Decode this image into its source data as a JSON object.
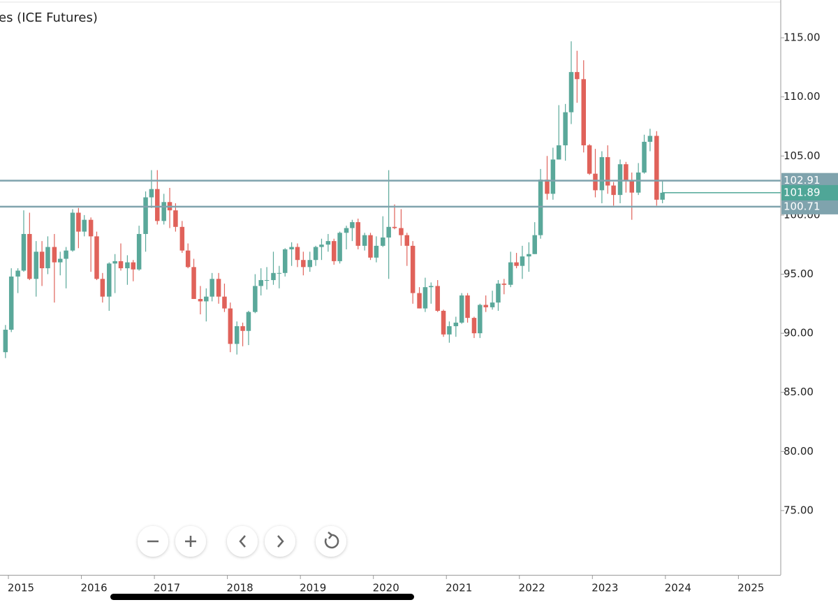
{
  "chart_data": {
    "type": "candlestick",
    "title": "es (ICE Futures)",
    "up_color": "#5aa89a",
    "down_color": "#e0625a",
    "level_color": "#7fa3ad",
    "last_color": "#4fa697",
    "xlim": [
      2014.885,
      2025.58
    ],
    "xticks": [
      2015,
      2016,
      2017,
      2018,
      2019,
      2020,
      2021,
      2022,
      2023,
      2024,
      2025
    ],
    "ylim": [
      69.56,
      117.9
    ],
    "yticks": [
      {
        "value": 75,
        "label": "75.00"
      },
      {
        "value": 80,
        "label": "80.00"
      },
      {
        "value": 85,
        "label": "85.00"
      },
      {
        "value": 90,
        "label": "90.00"
      },
      {
        "value": 95,
        "label": "95.00"
      },
      {
        "value": 100,
        "label": "100.00"
      },
      {
        "value": 105,
        "label": "105.00"
      },
      {
        "value": 110,
        "label": "110.00"
      },
      {
        "value": 115,
        "label": "115.00"
      }
    ],
    "levels": [
      102.91,
      100.71
    ],
    "last_price": 101.89,
    "x": [
      2014.96,
      2015.04,
      2015.13,
      2015.21,
      2015.29,
      2015.38,
      2015.46,
      2015.54,
      2015.63,
      2015.71,
      2015.79,
      2015.88,
      2015.96,
      2016.04,
      2016.13,
      2016.21,
      2016.29,
      2016.38,
      2016.46,
      2016.54,
      2016.63,
      2016.71,
      2016.79,
      2016.88,
      2016.96,
      2017.04,
      2017.13,
      2017.21,
      2017.29,
      2017.38,
      2017.46,
      2017.54,
      2017.63,
      2017.71,
      2017.79,
      2017.88,
      2017.96,
      2018.04,
      2018.13,
      2018.21,
      2018.29,
      2018.38,
      2018.46,
      2018.54,
      2018.63,
      2018.71,
      2018.79,
      2018.88,
      2018.96,
      2019.04,
      2019.13,
      2019.21,
      2019.29,
      2019.38,
      2019.46,
      2019.54,
      2019.63,
      2019.71,
      2019.79,
      2019.88,
      2019.96,
      2020.04,
      2020.13,
      2020.21,
      2020.29,
      2020.38,
      2020.46,
      2020.54,
      2020.63,
      2020.71,
      2020.79,
      2020.88,
      2020.96,
      2021.04,
      2021.13,
      2021.21,
      2021.29,
      2021.38,
      2021.46,
      2021.54,
      2021.63,
      2021.71,
      2021.79,
      2021.88,
      2021.96,
      2022.04,
      2022.13,
      2022.21,
      2022.29,
      2022.38,
      2022.46,
      2022.54,
      2022.63,
      2022.71,
      2022.79,
      2022.88,
      2022.96,
      2023.04,
      2023.13,
      2023.21,
      2023.29,
      2023.38,
      2023.46,
      2023.54,
      2023.63,
      2023.71,
      2023.79,
      2023.88,
      2023.96
    ],
    "open": [
      88.4,
      90.3,
      94.8,
      95.3,
      98.4,
      94.6,
      96.9,
      95.5,
      97.3,
      96.0,
      96.3,
      97.0,
      100.2,
      98.6,
      99.6,
      98.2,
      94.6,
      93.1,
      95.9,
      96.1,
      95.5,
      96.0,
      95.4,
      98.4,
      101.5,
      102.2,
      99.5,
      101.1,
      100.4,
      99.0,
      97.0,
      95.6,
      92.9,
      92.7,
      93.1,
      94.6,
      93.1,
      92.1,
      89.1,
      90.6,
      90.2,
      91.8,
      94.0,
      94.5,
      94.5,
      95.1,
      95.1,
      97.1,
      97.3,
      96.2,
      95.6,
      96.2,
      97.3,
      97.5,
      97.8,
      96.1,
      98.5,
      98.9,
      99.4,
      97.4,
      98.3,
      96.4,
      97.4,
      98.1,
      99.0,
      98.9,
      98.3,
      97.4,
      93.4,
      92.1,
      93.9,
      94.0,
      91.9,
      89.9,
      90.6,
      90.9,
      93.2,
      91.3,
      90.0,
      92.4,
      92.2,
      92.6,
      94.2,
      94.1,
      96.0,
      95.7,
      96.5,
      96.7,
      98.3,
      103.0,
      101.8,
      104.7,
      105.9,
      108.7,
      112.1,
      111.5,
      105.9,
      103.5,
      102.1,
      104.9,
      102.5,
      101.7,
      104.3,
      102.9,
      101.9,
      103.6,
      106.2,
      106.7,
      101.3
    ],
    "high": [
      90.7,
      95.5,
      95.5,
      100.4,
      100.2,
      97.8,
      97.8,
      98.2,
      98.4,
      96.9,
      97.3,
      100.5,
      100.6,
      100.0,
      99.8,
      98.6,
      95.1,
      96.0,
      96.7,
      97.6,
      96.6,
      96.2,
      99.1,
      102.0,
      103.8,
      103.8,
      101.8,
      102.3,
      101.0,
      99.5,
      97.6,
      96.3,
      94.0,
      93.8,
      95.1,
      95.1,
      94.2,
      92.6,
      91.0,
      90.9,
      91.9,
      95.0,
      95.5,
      95.6,
      96.9,
      95.7,
      97.2,
      97.7,
      97.6,
      96.9,
      96.9,
      97.4,
      98.0,
      98.4,
      98.0,
      98.6,
      99.1,
      99.6,
      99.7,
      98.5,
      98.5,
      98.2,
      99.9,
      103.8,
      100.9,
      100.5,
      98.5,
      97.8,
      93.9,
      94.7,
      94.3,
      94.5,
      92.0,
      91.0,
      91.4,
      93.4,
      93.4,
      91.4,
      92.5,
      93.2,
      93.6,
      94.5,
      94.6,
      96.9,
      96.8,
      97.4,
      97.7,
      99.4,
      103.9,
      105.0,
      105.7,
      109.3,
      109.4,
      114.7,
      113.9,
      113.1,
      106.0,
      105.6,
      105.4,
      105.9,
      102.8,
      104.7,
      104.5,
      103.6,
      104.4,
      106.8,
      107.3,
      107.1,
      102.9
    ],
    "low": [
      87.9,
      90.1,
      93.4,
      95.2,
      94.5,
      93.1,
      94.0,
      95.0,
      92.6,
      94.9,
      93.8,
      96.9,
      97.2,
      98.2,
      95.2,
      94.5,
      92.6,
      91.9,
      93.4,
      95.3,
      94.1,
      94.4,
      95.3,
      96.9,
      100.6,
      99.2,
      99.2,
      98.9,
      98.6,
      96.8,
      95.5,
      92.9,
      91.6,
      91.0,
      92.7,
      92.5,
      91.8,
      88.4,
      88.2,
      88.9,
      89.0,
      91.7,
      93.2,
      93.7,
      94.1,
      93.8,
      94.8,
      95.7,
      95.6,
      94.9,
      95.2,
      95.7,
      96.2,
      96.9,
      95.8,
      95.9,
      97.1,
      97.8,
      97.1,
      97.0,
      96.2,
      96.0,
      97.3,
      94.6,
      98.8,
      97.4,
      95.7,
      92.5,
      92.1,
      91.8,
      92.5,
      91.8,
      89.7,
      89.2,
      89.7,
      90.8,
      90.9,
      89.6,
      89.6,
      91.8,
      92.0,
      91.9,
      93.3,
      93.9,
      95.5,
      94.6,
      95.2,
      96.7,
      98.0,
      101.3,
      101.3,
      104.7,
      104.6,
      107.7,
      109.5,
      105.3,
      103.4,
      101.5,
      101.0,
      101.8,
      100.8,
      101.0,
      101.9,
      99.6,
      101.7,
      103.5,
      105.4,
      100.8,
      101.0
    ],
    "close": [
      90.3,
      94.8,
      95.3,
      98.4,
      94.6,
      96.9,
      95.5,
      97.3,
      96.0,
      96.3,
      97.0,
      100.2,
      98.6,
      99.6,
      98.2,
      94.6,
      93.1,
      95.9,
      96.1,
      95.5,
      96.0,
      95.4,
      98.4,
      101.5,
      102.2,
      99.5,
      101.1,
      100.4,
      99.0,
      97.0,
      95.6,
      92.9,
      92.7,
      93.1,
      94.6,
      93.1,
      92.1,
      89.1,
      90.6,
      90.2,
      91.8,
      94.0,
      94.5,
      94.5,
      95.1,
      95.1,
      97.1,
      97.3,
      96.2,
      95.6,
      96.2,
      97.3,
      97.5,
      97.8,
      96.1,
      98.5,
      98.9,
      99.4,
      97.4,
      98.3,
      96.4,
      97.4,
      98.1,
      99.0,
      98.9,
      98.3,
      97.4,
      93.4,
      92.1,
      93.9,
      94.0,
      91.9,
      89.9,
      90.6,
      90.9,
      93.2,
      91.3,
      90.0,
      92.4,
      92.2,
      92.6,
      94.2,
      94.1,
      96.0,
      95.7,
      96.5,
      96.7,
      98.3,
      103.0,
      101.8,
      104.7,
      105.9,
      108.7,
      112.1,
      111.5,
      105.9,
      103.5,
      102.1,
      104.9,
      102.5,
      101.7,
      104.3,
      102.9,
      101.9,
      103.6,
      106.2,
      106.7,
      101.3,
      101.89
    ]
  }
}
